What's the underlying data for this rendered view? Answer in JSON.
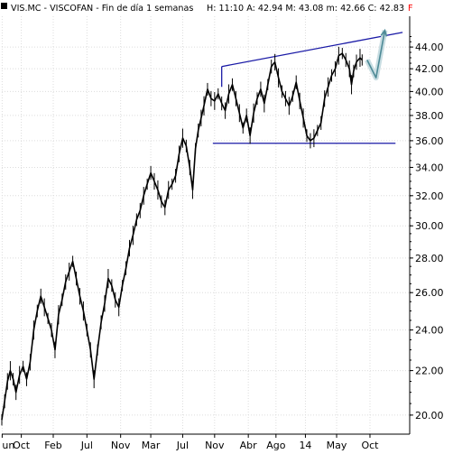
{
  "header": {
    "symbol": "VIS.MC - VISCOFAN - Fin de día 1 semanas",
    "stats": [
      {
        "label": "H:",
        "value": "11:10"
      },
      {
        "label": "A:",
        "value": "42.94"
      },
      {
        "label": "M:",
        "value": "43.08"
      },
      {
        "label": "m:",
        "value": "42.66"
      },
      {
        "label": "C:",
        "value": "42.83"
      }
    ],
    "close_flag": "F",
    "close_color": "#ff0000"
  },
  "colors": {
    "price_line": "#000000",
    "trend_lines": "#1a1aa6",
    "projection_arrow": "#4d8a96",
    "arrow_halo": "#c8dde2",
    "grid": "#dcdcdc",
    "axis": "#000000"
  },
  "chart_data": {
    "type": "line",
    "title": "",
    "xlabel": "",
    "ylabel": "",
    "scale": "log",
    "ylim": [
      19.2,
      47.0
    ],
    "y_ticks": [
      "20.00",
      "22.00",
      "24.00",
      "26.00",
      "28.00",
      "30.00",
      "32.00",
      "34.00",
      "36.00",
      "38.00",
      "40.00",
      "42.00",
      "44.00"
    ],
    "x_ticks": [
      {
        "label": "un",
        "x": 0.1
      },
      {
        "label": "Oct",
        "x": 5.5
      },
      {
        "label": "Feb",
        "x": 14.5
      },
      {
        "label": "Jul",
        "x": 24
      },
      {
        "label": "Nov",
        "x": 33.5
      },
      {
        "label": "Mar",
        "x": 42
      },
      {
        "label": "Jul",
        "x": 51
      },
      {
        "label": "Nov",
        "x": 60
      },
      {
        "label": "Abr",
        "x": 69.5
      },
      {
        "label": "Ago",
        "x": 77.3
      },
      {
        "label": "14",
        "x": 85.6
      },
      {
        "label": "May",
        "x": 94.4
      },
      {
        "label": "Oct",
        "x": 103.8
      }
    ],
    "x_range": [
      0,
      115
    ],
    "grid": true,
    "series": [
      {
        "color": "#000000",
        "points": [
          [
            0,
            19.8
          ],
          [
            0.8,
            20.6
          ],
          [
            1.6,
            21.5
          ],
          [
            2.4,
            22.0
          ],
          [
            3.2,
            21.6
          ],
          [
            4.0,
            21.0
          ],
          [
            5.0,
            21.8
          ],
          [
            6.0,
            22.2
          ],
          [
            7.0,
            21.6
          ],
          [
            8.0,
            22.4
          ],
          [
            9.0,
            24.0
          ],
          [
            10.0,
            25.0
          ],
          [
            11.0,
            25.8
          ],
          [
            12.0,
            25.2
          ],
          [
            13.0,
            24.6
          ],
          [
            14.0,
            24.0
          ],
          [
            15.0,
            23.0
          ],
          [
            16.0,
            24.8
          ],
          [
            17.0,
            25.6
          ],
          [
            18.0,
            26.6
          ],
          [
            19.0,
            27.2
          ],
          [
            20.0,
            27.8
          ],
          [
            21.0,
            26.8
          ],
          [
            22.0,
            25.8
          ],
          [
            23.0,
            25.0
          ],
          [
            24.0,
            24.0
          ],
          [
            25.0,
            23.0
          ],
          [
            26.0,
            21.6
          ],
          [
            27.0,
            23.0
          ],
          [
            28.0,
            24.4
          ],
          [
            29.0,
            25.4
          ],
          [
            30.0,
            26.8
          ],
          [
            31.0,
            26.4
          ],
          [
            32.0,
            25.6
          ],
          [
            33.0,
            25.2
          ],
          [
            34.0,
            26.4
          ],
          [
            35.0,
            27.4
          ],
          [
            36.0,
            28.6
          ],
          [
            37.0,
            29.4
          ],
          [
            38.0,
            30.4
          ],
          [
            39.0,
            31.0
          ],
          [
            40.0,
            32.0
          ],
          [
            41.0,
            32.8
          ],
          [
            42.0,
            33.6
          ],
          [
            43.0,
            33.0
          ],
          [
            44.0,
            32.4
          ],
          [
            45.0,
            31.6
          ],
          [
            46.0,
            31.2
          ],
          [
            47.0,
            32.4
          ],
          [
            48.0,
            32.8
          ],
          [
            49.0,
            33.4
          ],
          [
            50.0,
            35.0
          ],
          [
            51.0,
            36.2
          ],
          [
            52.0,
            35.6
          ],
          [
            53.0,
            34.0
          ],
          [
            53.8,
            32.4
          ],
          [
            54.6,
            35.4
          ],
          [
            55.4,
            36.8
          ],
          [
            56.2,
            37.8
          ],
          [
            57.0,
            38.8
          ],
          [
            58.0,
            40.2
          ],
          [
            59.0,
            39.4
          ],
          [
            60.0,
            39.2
          ],
          [
            61.0,
            39.8
          ],
          [
            62.0,
            39.0
          ],
          [
            63.0,
            38.4
          ],
          [
            64.0,
            39.8
          ],
          [
            65.0,
            40.6
          ],
          [
            66.0,
            39.4
          ],
          [
            67.0,
            38.2
          ],
          [
            68.0,
            37.0
          ],
          [
            69.0,
            38.0
          ],
          [
            70.0,
            36.4
          ],
          [
            71.0,
            38.2
          ],
          [
            72.0,
            39.4
          ],
          [
            73.0,
            40.2
          ],
          [
            74.0,
            39.0
          ],
          [
            75.0,
            40.6
          ],
          [
            76.0,
            42.2
          ],
          [
            77.0,
            42.6
          ],
          [
            78.0,
            41.2
          ],
          [
            79.0,
            40.0
          ],
          [
            80.0,
            39.4
          ],
          [
            81.0,
            38.8
          ],
          [
            82.0,
            39.6
          ],
          [
            83.0,
            40.8
          ],
          [
            84.0,
            39.2
          ],
          [
            85.0,
            37.8
          ],
          [
            86.0,
            36.4
          ],
          [
            87.0,
            36.0
          ],
          [
            88.0,
            36.2
          ],
          [
            89.0,
            36.8
          ],
          [
            90.0,
            37.4
          ],
          [
            91.0,
            39.4
          ],
          [
            92.0,
            40.4
          ],
          [
            93.0,
            41.4
          ],
          [
            94.0,
            42.0
          ],
          [
            95.0,
            43.2
          ],
          [
            96.0,
            43.4
          ],
          [
            97.0,
            42.8
          ],
          [
            98.0,
            42.0
          ],
          [
            98.6,
            40.6
          ],
          [
            99.2,
            41.8
          ],
          [
            100.0,
            42.6
          ],
          [
            101.0,
            43.0
          ],
          [
            101.6,
            42.8
          ]
        ]
      }
    ],
    "annotations": [
      {
        "type": "trendline",
        "role": "resistance",
        "from": [
          62.0,
          42.2
        ],
        "to": [
          113.0,
          45.4
        ]
      },
      {
        "type": "trendline",
        "role": "support",
        "from": [
          59.5,
          35.8
        ],
        "to": [
          111.0,
          35.8
        ]
      },
      {
        "type": "segment",
        "from": [
          62.0,
          40.4
        ],
        "to": [
          62.0,
          42.2
        ]
      },
      {
        "type": "arrow",
        "path": [
          [
            103.0,
            42.8
          ],
          [
            105.5,
            41.2
          ],
          [
            108.0,
            45.6
          ]
        ]
      }
    ]
  }
}
